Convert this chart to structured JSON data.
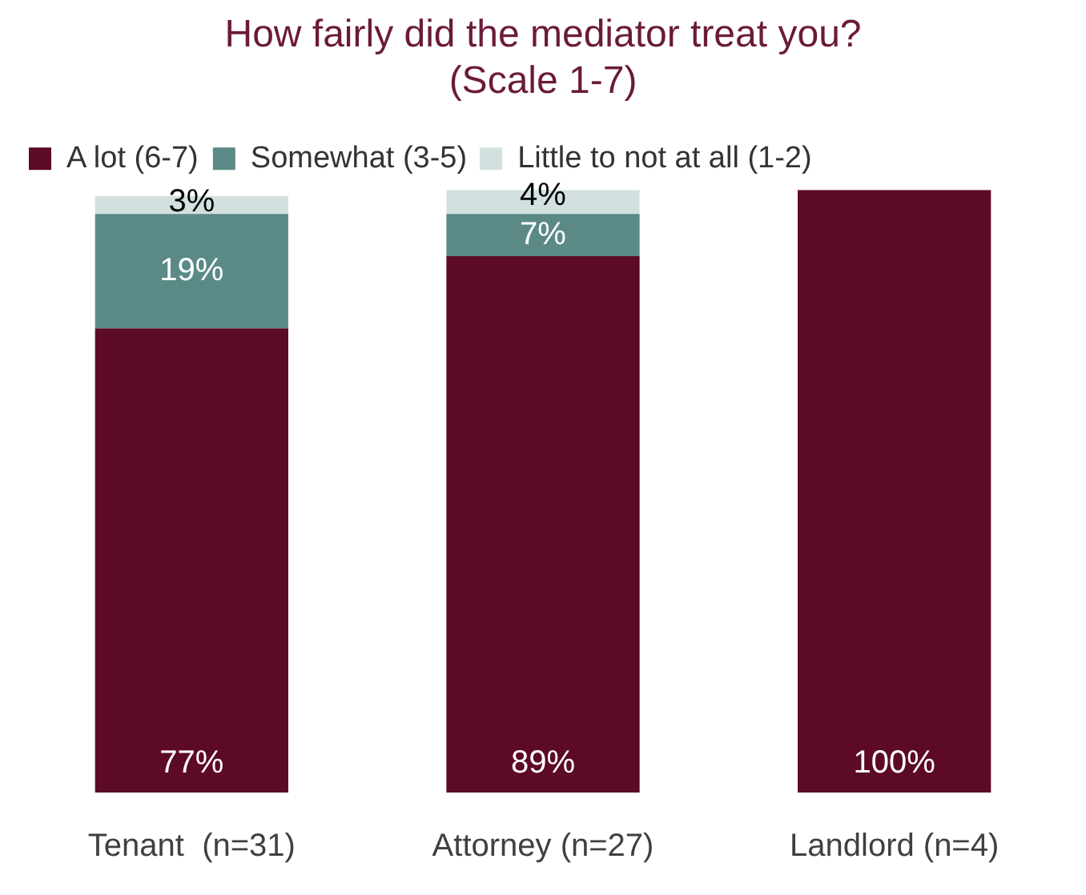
{
  "chart_data": {
    "type": "bar",
    "title": "How fairly did the mediator treat you?\n(Scale 1-7)",
    "categories": [
      "Tenant  (n=31)",
      "Attorney (n=27)",
      "Landlord (n=4)"
    ],
    "stacked": true,
    "ylim": [
      0,
      100
    ],
    "tick_labels": "x",
    "grid": false,
    "legend": "top left",
    "series": [
      {
        "name": "A lot (6-7)",
        "color": "#5c0a26",
        "values": [
          77,
          89,
          100
        ],
        "value_labels": [
          "77%",
          "89%",
          "100%"
        ]
      },
      {
        "name": "Somewhat (3-5)",
        "color": "#5b8a86",
        "values": [
          19,
          7,
          0
        ],
        "value_labels": [
          "19%",
          "7%",
          null
        ]
      },
      {
        "name": "Little to not at all (1-2)",
        "color": "#d3e0e0",
        "values": [
          3,
          4,
          0
        ],
        "value_labels": [
          "3%",
          "4%",
          null
        ]
      }
    ]
  }
}
